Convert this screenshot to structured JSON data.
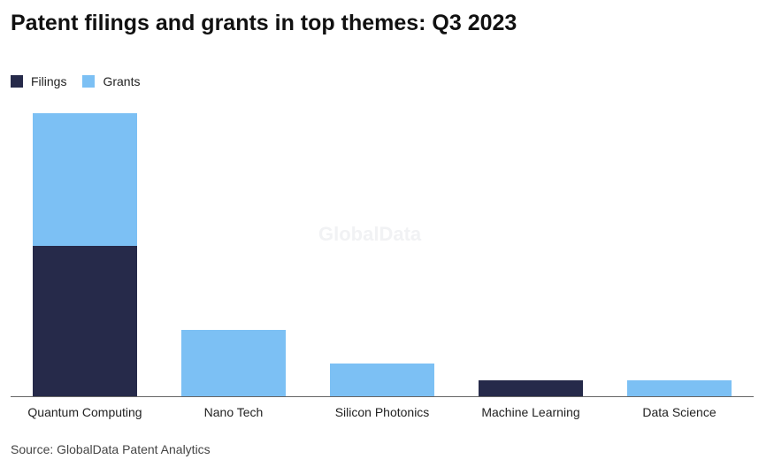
{
  "title": "Patent filings and grants in top themes: Q3 2023",
  "source": "Source: GlobalData Patent Analytics",
  "watermark": "GlobalData",
  "colors": {
    "filings": "#262a4a",
    "grants": "#7cc0f4"
  },
  "chart_data": {
    "type": "bar",
    "stacked": true,
    "title": "Patent filings and grants in top themes: Q3 2023",
    "xlabel": "",
    "ylabel": "",
    "categories": [
      "Quantum Computing",
      "Nano Tech",
      "Silicon Photonics",
      "Machine Learning",
      "Data Science"
    ],
    "series": [
      {
        "name": "Filings",
        "values": [
          170,
          0,
          0,
          18,
          0
        ]
      },
      {
        "name": "Grants",
        "values": [
          150,
          75,
          37,
          0,
          18
        ]
      }
    ],
    "ylim": [
      0,
      320
    ],
    "grid": false,
    "legend": "top-left"
  }
}
